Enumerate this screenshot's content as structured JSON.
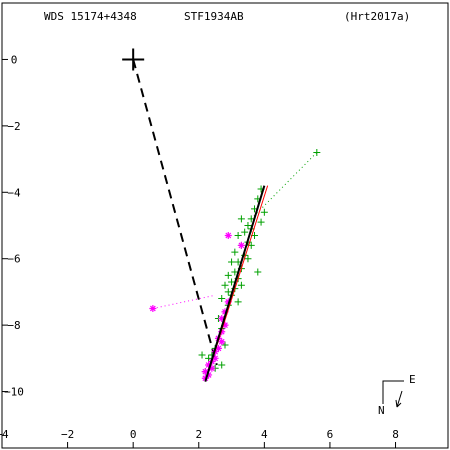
{
  "header": {
    "left": "WDS 15174+4348",
    "center": "STF1934AB",
    "right": "(Hrt2017a)"
  },
  "compass": {
    "east_label": "E",
    "north_label": "N"
  },
  "chart_data": {
    "type": "scatter",
    "title": "",
    "xlabel": "",
    "ylabel": "",
    "xlim": [
      -4,
      9.6
    ],
    "ylim": [
      -11.7,
      1.7
    ],
    "xticks": [
      -4,
      -2,
      0,
      2,
      4,
      6,
      8
    ],
    "yticks": [
      0,
      -2,
      -4,
      -6,
      -8,
      -10
    ],
    "primary": [
      0,
      0
    ],
    "fit_line": [
      [
        2.2,
        -9.7
      ],
      [
        4.0,
        -3.8
      ]
    ],
    "fit_line_red": [
      [
        2.3,
        -9.4
      ],
      [
        4.1,
        -3.8
      ]
    ],
    "dashed_link": [
      [
        0,
        0
      ],
      [
        2.55,
        -9.2
      ]
    ],
    "dotted_lines": [
      [
        [
          3.6,
          -4.8
        ],
        [
          5.6,
          -2.8
        ]
      ],
      [
        [
          0.6,
          -7.5
        ],
        [
          2.5,
          -7.1
        ]
      ]
    ],
    "series": [
      {
        "marker": "plus",
        "color": "#00a000",
        "points": [
          [
            5.6,
            -2.8
          ],
          [
            3.9,
            -3.9
          ],
          [
            3.8,
            -4.2
          ],
          [
            3.7,
            -4.5
          ],
          [
            3.6,
            -4.8
          ],
          [
            3.9,
            -4.9
          ],
          [
            3.5,
            -5.0
          ],
          [
            3.3,
            -4.8
          ],
          [
            4.0,
            -4.6
          ],
          [
            3.6,
            -5.1
          ],
          [
            3.4,
            -5.2
          ],
          [
            3.7,
            -5.3
          ],
          [
            3.2,
            -5.3
          ],
          [
            3.5,
            -5.5
          ],
          [
            3.3,
            -5.6
          ],
          [
            3.6,
            -5.6
          ],
          [
            3.1,
            -5.8
          ],
          [
            3.4,
            -5.9
          ],
          [
            3.5,
            -6.0
          ],
          [
            3.2,
            -6.1
          ],
          [
            3.0,
            -6.1
          ],
          [
            3.3,
            -6.3
          ],
          [
            3.8,
            -6.4
          ],
          [
            3.1,
            -6.4
          ],
          [
            2.9,
            -6.5
          ],
          [
            3.2,
            -6.6
          ],
          [
            3.0,
            -6.7
          ],
          [
            2.8,
            -6.8
          ],
          [
            3.3,
            -6.8
          ],
          [
            3.1,
            -6.9
          ],
          [
            2.9,
            -7.0
          ],
          [
            3.0,
            -7.1
          ],
          [
            2.7,
            -7.2
          ],
          [
            3.2,
            -7.3
          ],
          [
            2.9,
            -7.4
          ],
          [
            2.8,
            -7.6
          ],
          [
            2.6,
            -7.8
          ],
          [
            2.7,
            -8.1
          ],
          [
            2.8,
            -8.6
          ],
          [
            2.5,
            -8.7
          ],
          [
            2.4,
            -8.9
          ],
          [
            2.1,
            -8.9
          ],
          [
            2.3,
            -9.0
          ],
          [
            2.7,
            -9.2
          ],
          [
            2.5,
            -9.3
          ],
          [
            2.2,
            -9.4
          ]
        ]
      },
      {
        "marker": "asterisk",
        "color": "#ff00ff",
        "points": [
          [
            2.9,
            -5.3
          ],
          [
            3.3,
            -5.6
          ],
          [
            0.6,
            -7.5
          ],
          [
            2.9,
            -7.3
          ],
          [
            2.8,
            -7.6
          ],
          [
            2.7,
            -7.8
          ],
          [
            2.8,
            -8.0
          ],
          [
            2.7,
            -8.2
          ],
          [
            2.6,
            -8.4
          ],
          [
            2.7,
            -8.5
          ],
          [
            2.6,
            -8.7
          ],
          [
            2.5,
            -8.8
          ],
          [
            2.5,
            -9.0
          ],
          [
            2.4,
            -9.1
          ],
          [
            2.3,
            -9.2
          ],
          [
            2.4,
            -9.3
          ],
          [
            2.2,
            -9.4
          ],
          [
            2.3,
            -9.5
          ],
          [
            2.2,
            -9.6
          ]
        ]
      }
    ]
  }
}
